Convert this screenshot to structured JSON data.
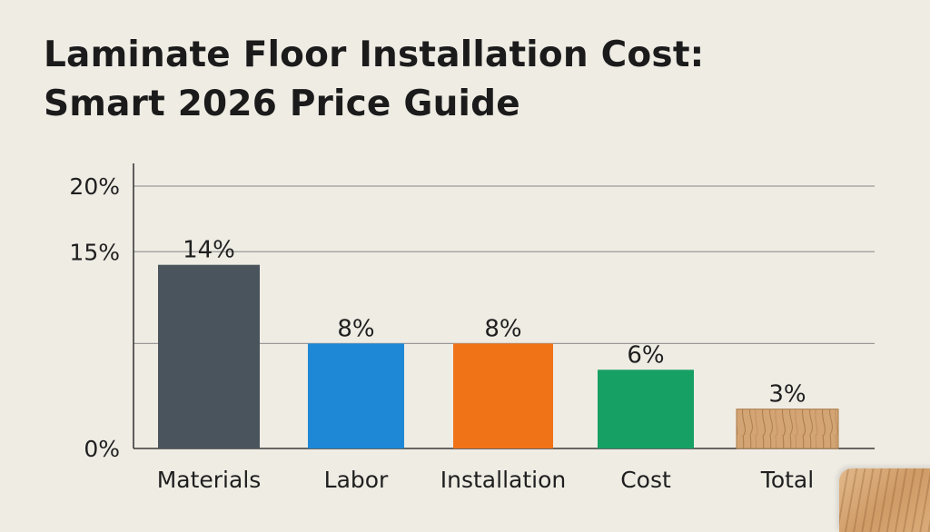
{
  "title_lines": [
    "Laminate Floor Installation Cost:",
    "Smart 2026 Price Guide"
  ],
  "colors": {
    "background": "#efece4",
    "axis": "#3a3a3a",
    "grid": "#9a9a9a",
    "materials": "#4a545c",
    "labor": "#1e88d6",
    "installation": "#f07318",
    "cost": "#17a063",
    "total": "#c99a66"
  },
  "chart_data": {
    "type": "bar",
    "title": "Laminate Floor Installation Cost: Smart 2026 Price Guide",
    "categories": [
      "Materials",
      "Labor",
      "Installation",
      "Cost",
      "Total"
    ],
    "values": [
      14,
      8,
      8,
      6,
      3
    ],
    "data_labels": [
      "14%",
      "8%",
      "8%",
      "6%",
      "3%"
    ],
    "bar_colors": [
      "#4a545c",
      "#1e88d6",
      "#f07318",
      "#17a063",
      "#c99a66"
    ],
    "bar_fill_styles": [
      "solid",
      "solid",
      "solid",
      "solid",
      "wood-texture"
    ],
    "y_ticks": [
      {
        "value": 0,
        "label": "0%"
      },
      {
        "value": 15,
        "label": "15%"
      },
      {
        "value": 20,
        "label": "20%"
      }
    ],
    "gridlines": [
      8,
      15,
      20
    ],
    "ylim": [
      0,
      20
    ],
    "xlabel": "",
    "ylabel": "",
    "grid": true,
    "legend": "none"
  },
  "decorations": {
    "corner_icon": "wood-plank-icon"
  }
}
